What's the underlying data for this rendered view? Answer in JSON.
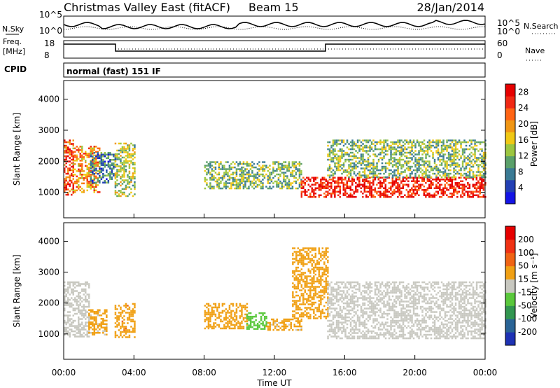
{
  "header": {
    "title": "Christmas Valley East (fitACF)",
    "beam": "Beam 15",
    "date": "28/Jan/2014"
  },
  "status": {
    "nsky_label": "N.Sky",
    "nsearch_label": "N.Search",
    "noise_ticks": [
      "10^5",
      "10^0"
    ],
    "freq_label_1": "Freq.",
    "freq_label_2": "[MHz]",
    "freq_ticks": [
      "18",
      "8"
    ],
    "nave_ticks": [
      "60",
      "0"
    ],
    "nave_label": "Nave",
    "cpid_label": "CPID",
    "cpid_value": "normal (fast) 151 IF"
  },
  "chart_data": [
    {
      "type": "heatmap",
      "name": "power",
      "xlabel": "Time UT",
      "ylabel": "Slant Range [km]",
      "xlim": [
        0,
        24
      ],
      "ylim": [
        180,
        4600
      ],
      "x_ticks": [
        "00:00",
        "04:00",
        "08:00",
        "12:00",
        "16:00",
        "20:00",
        "00:00"
      ],
      "y_ticks": [
        1000,
        2000,
        3000,
        4000
      ],
      "colorbar": {
        "label": "Power [dB]",
        "ticks": [
          4,
          8,
          12,
          16,
          20,
          24,
          28
        ],
        "range": [
          0,
          30
        ],
        "colors": [
          "#1414e6",
          "#2340b4",
          "#3a7a94",
          "#5aa06a",
          "#9cc640",
          "#f0c814",
          "#f09614",
          "#ff6414",
          "#f02814",
          "#e60000"
        ]
      },
      "regions": [
        {
          "t": [
            0.0,
            0.5
          ],
          "r": [
            900,
            2700
          ],
          "level": 25
        },
        {
          "t": [
            0.5,
            2.0
          ],
          "r": [
            1000,
            2500
          ],
          "level": 20
        },
        {
          "t": [
            1.5,
            2.9
          ],
          "r": [
            1300,
            2300
          ],
          "level": 8
        },
        {
          "t": [
            2.9,
            4.0
          ],
          "r": [
            900,
            2600
          ],
          "level": 14
        },
        {
          "t": [
            8.0,
            13.5
          ],
          "r": [
            1150,
            2000
          ],
          "level": 12
        },
        {
          "t": [
            13.5,
            24.0
          ],
          "r": [
            850,
            1500
          ],
          "level": 27
        },
        {
          "t": [
            15.0,
            24.0
          ],
          "r": [
            1500,
            2700
          ],
          "level": 12
        }
      ]
    },
    {
      "type": "heatmap",
      "name": "velocity",
      "xlabel": "Time UT",
      "ylabel": "Slant Range [km]",
      "xlim": [
        0,
        24
      ],
      "ylim": [
        180,
        4600
      ],
      "x_ticks": [
        "00:00",
        "04:00",
        "08:00",
        "12:00",
        "16:00",
        "20:00",
        "00:00"
      ],
      "y_ticks": [
        1000,
        2000,
        3000,
        4000
      ],
      "colorbar": {
        "label": "Velocity [m s⁻¹]",
        "ticks": [
          "200",
          "100",
          "50",
          "15",
          "-15",
          "-50",
          "-100",
          "-200"
        ],
        "range": [
          -250,
          250
        ],
        "colors": [
          "#1e32b4",
          "#2a6496",
          "#329650",
          "#5ac83c",
          "#c8c8c0",
          "#f0a014",
          "#f06414",
          "#f03214",
          "#e60000"
        ]
      },
      "regions": [
        {
          "t": [
            0.0,
            1.4
          ],
          "r": [
            900,
            2700
          ],
          "velocity": 0
        },
        {
          "t": [
            1.4,
            2.4
          ],
          "r": [
            1000,
            1800
          ],
          "velocity": 40
        },
        {
          "t": [
            2.9,
            4.0
          ],
          "r": [
            900,
            2000
          ],
          "velocity": 70
        },
        {
          "t": [
            8.0,
            10.4
          ],
          "r": [
            1150,
            2000
          ],
          "velocity": 60
        },
        {
          "t": [
            10.4,
            11.5
          ],
          "r": [
            1150,
            1700
          ],
          "velocity": -60
        },
        {
          "t": [
            11.5,
            13.5
          ],
          "r": [
            1150,
            1500
          ],
          "velocity": 40
        },
        {
          "t": [
            13.0,
            15.0
          ],
          "r": [
            1500,
            3800
          ],
          "velocity": 60
        },
        {
          "t": [
            15.0,
            24.0
          ],
          "r": [
            850,
            2700
          ],
          "velocity": 0
        }
      ]
    }
  ]
}
